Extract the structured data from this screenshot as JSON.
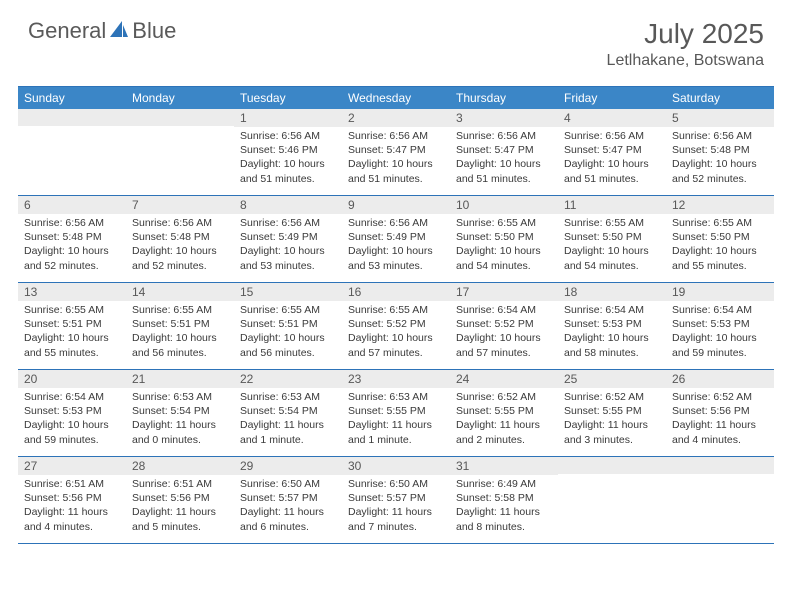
{
  "logo": {
    "part1": "General",
    "part2": "Blue"
  },
  "title": {
    "month": "July 2025",
    "location": "Letlhakane, Botswana"
  },
  "colors": {
    "header_bg": "#3b86c7",
    "border": "#2d73b8",
    "daynum_bg": "#ececec",
    "text_dark": "#3a3a3a",
    "text_gray": "#585858"
  },
  "weekdays": [
    "Sunday",
    "Monday",
    "Tuesday",
    "Wednesday",
    "Thursday",
    "Friday",
    "Saturday"
  ],
  "weeks": [
    [
      {
        "n": "",
        "sr": "",
        "ss": "",
        "dl": ""
      },
      {
        "n": "",
        "sr": "",
        "ss": "",
        "dl": ""
      },
      {
        "n": "1",
        "sr": "Sunrise: 6:56 AM",
        "ss": "Sunset: 5:46 PM",
        "dl": "Daylight: 10 hours and 51 minutes."
      },
      {
        "n": "2",
        "sr": "Sunrise: 6:56 AM",
        "ss": "Sunset: 5:47 PM",
        "dl": "Daylight: 10 hours and 51 minutes."
      },
      {
        "n": "3",
        "sr": "Sunrise: 6:56 AM",
        "ss": "Sunset: 5:47 PM",
        "dl": "Daylight: 10 hours and 51 minutes."
      },
      {
        "n": "4",
        "sr": "Sunrise: 6:56 AM",
        "ss": "Sunset: 5:47 PM",
        "dl": "Daylight: 10 hours and 51 minutes."
      },
      {
        "n": "5",
        "sr": "Sunrise: 6:56 AM",
        "ss": "Sunset: 5:48 PM",
        "dl": "Daylight: 10 hours and 52 minutes."
      }
    ],
    [
      {
        "n": "6",
        "sr": "Sunrise: 6:56 AM",
        "ss": "Sunset: 5:48 PM",
        "dl": "Daylight: 10 hours and 52 minutes."
      },
      {
        "n": "7",
        "sr": "Sunrise: 6:56 AM",
        "ss": "Sunset: 5:48 PM",
        "dl": "Daylight: 10 hours and 52 minutes."
      },
      {
        "n": "8",
        "sr": "Sunrise: 6:56 AM",
        "ss": "Sunset: 5:49 PM",
        "dl": "Daylight: 10 hours and 53 minutes."
      },
      {
        "n": "9",
        "sr": "Sunrise: 6:56 AM",
        "ss": "Sunset: 5:49 PM",
        "dl": "Daylight: 10 hours and 53 minutes."
      },
      {
        "n": "10",
        "sr": "Sunrise: 6:55 AM",
        "ss": "Sunset: 5:50 PM",
        "dl": "Daylight: 10 hours and 54 minutes."
      },
      {
        "n": "11",
        "sr": "Sunrise: 6:55 AM",
        "ss": "Sunset: 5:50 PM",
        "dl": "Daylight: 10 hours and 54 minutes."
      },
      {
        "n": "12",
        "sr": "Sunrise: 6:55 AM",
        "ss": "Sunset: 5:50 PM",
        "dl": "Daylight: 10 hours and 55 minutes."
      }
    ],
    [
      {
        "n": "13",
        "sr": "Sunrise: 6:55 AM",
        "ss": "Sunset: 5:51 PM",
        "dl": "Daylight: 10 hours and 55 minutes."
      },
      {
        "n": "14",
        "sr": "Sunrise: 6:55 AM",
        "ss": "Sunset: 5:51 PM",
        "dl": "Daylight: 10 hours and 56 minutes."
      },
      {
        "n": "15",
        "sr": "Sunrise: 6:55 AM",
        "ss": "Sunset: 5:51 PM",
        "dl": "Daylight: 10 hours and 56 minutes."
      },
      {
        "n": "16",
        "sr": "Sunrise: 6:55 AM",
        "ss": "Sunset: 5:52 PM",
        "dl": "Daylight: 10 hours and 57 minutes."
      },
      {
        "n": "17",
        "sr": "Sunrise: 6:54 AM",
        "ss": "Sunset: 5:52 PM",
        "dl": "Daylight: 10 hours and 57 minutes."
      },
      {
        "n": "18",
        "sr": "Sunrise: 6:54 AM",
        "ss": "Sunset: 5:53 PM",
        "dl": "Daylight: 10 hours and 58 minutes."
      },
      {
        "n": "19",
        "sr": "Sunrise: 6:54 AM",
        "ss": "Sunset: 5:53 PM",
        "dl": "Daylight: 10 hours and 59 minutes."
      }
    ],
    [
      {
        "n": "20",
        "sr": "Sunrise: 6:54 AM",
        "ss": "Sunset: 5:53 PM",
        "dl": "Daylight: 10 hours and 59 minutes."
      },
      {
        "n": "21",
        "sr": "Sunrise: 6:53 AM",
        "ss": "Sunset: 5:54 PM",
        "dl": "Daylight: 11 hours and 0 minutes."
      },
      {
        "n": "22",
        "sr": "Sunrise: 6:53 AM",
        "ss": "Sunset: 5:54 PM",
        "dl": "Daylight: 11 hours and 1 minute."
      },
      {
        "n": "23",
        "sr": "Sunrise: 6:53 AM",
        "ss": "Sunset: 5:55 PM",
        "dl": "Daylight: 11 hours and 1 minute."
      },
      {
        "n": "24",
        "sr": "Sunrise: 6:52 AM",
        "ss": "Sunset: 5:55 PM",
        "dl": "Daylight: 11 hours and 2 minutes."
      },
      {
        "n": "25",
        "sr": "Sunrise: 6:52 AM",
        "ss": "Sunset: 5:55 PM",
        "dl": "Daylight: 11 hours and 3 minutes."
      },
      {
        "n": "26",
        "sr": "Sunrise: 6:52 AM",
        "ss": "Sunset: 5:56 PM",
        "dl": "Daylight: 11 hours and 4 minutes."
      }
    ],
    [
      {
        "n": "27",
        "sr": "Sunrise: 6:51 AM",
        "ss": "Sunset: 5:56 PM",
        "dl": "Daylight: 11 hours and 4 minutes."
      },
      {
        "n": "28",
        "sr": "Sunrise: 6:51 AM",
        "ss": "Sunset: 5:56 PM",
        "dl": "Daylight: 11 hours and 5 minutes."
      },
      {
        "n": "29",
        "sr": "Sunrise: 6:50 AM",
        "ss": "Sunset: 5:57 PM",
        "dl": "Daylight: 11 hours and 6 minutes."
      },
      {
        "n": "30",
        "sr": "Sunrise: 6:50 AM",
        "ss": "Sunset: 5:57 PM",
        "dl": "Daylight: 11 hours and 7 minutes."
      },
      {
        "n": "31",
        "sr": "Sunrise: 6:49 AM",
        "ss": "Sunset: 5:58 PM",
        "dl": "Daylight: 11 hours and 8 minutes."
      },
      {
        "n": "",
        "sr": "",
        "ss": "",
        "dl": ""
      },
      {
        "n": "",
        "sr": "",
        "ss": "",
        "dl": ""
      }
    ]
  ]
}
